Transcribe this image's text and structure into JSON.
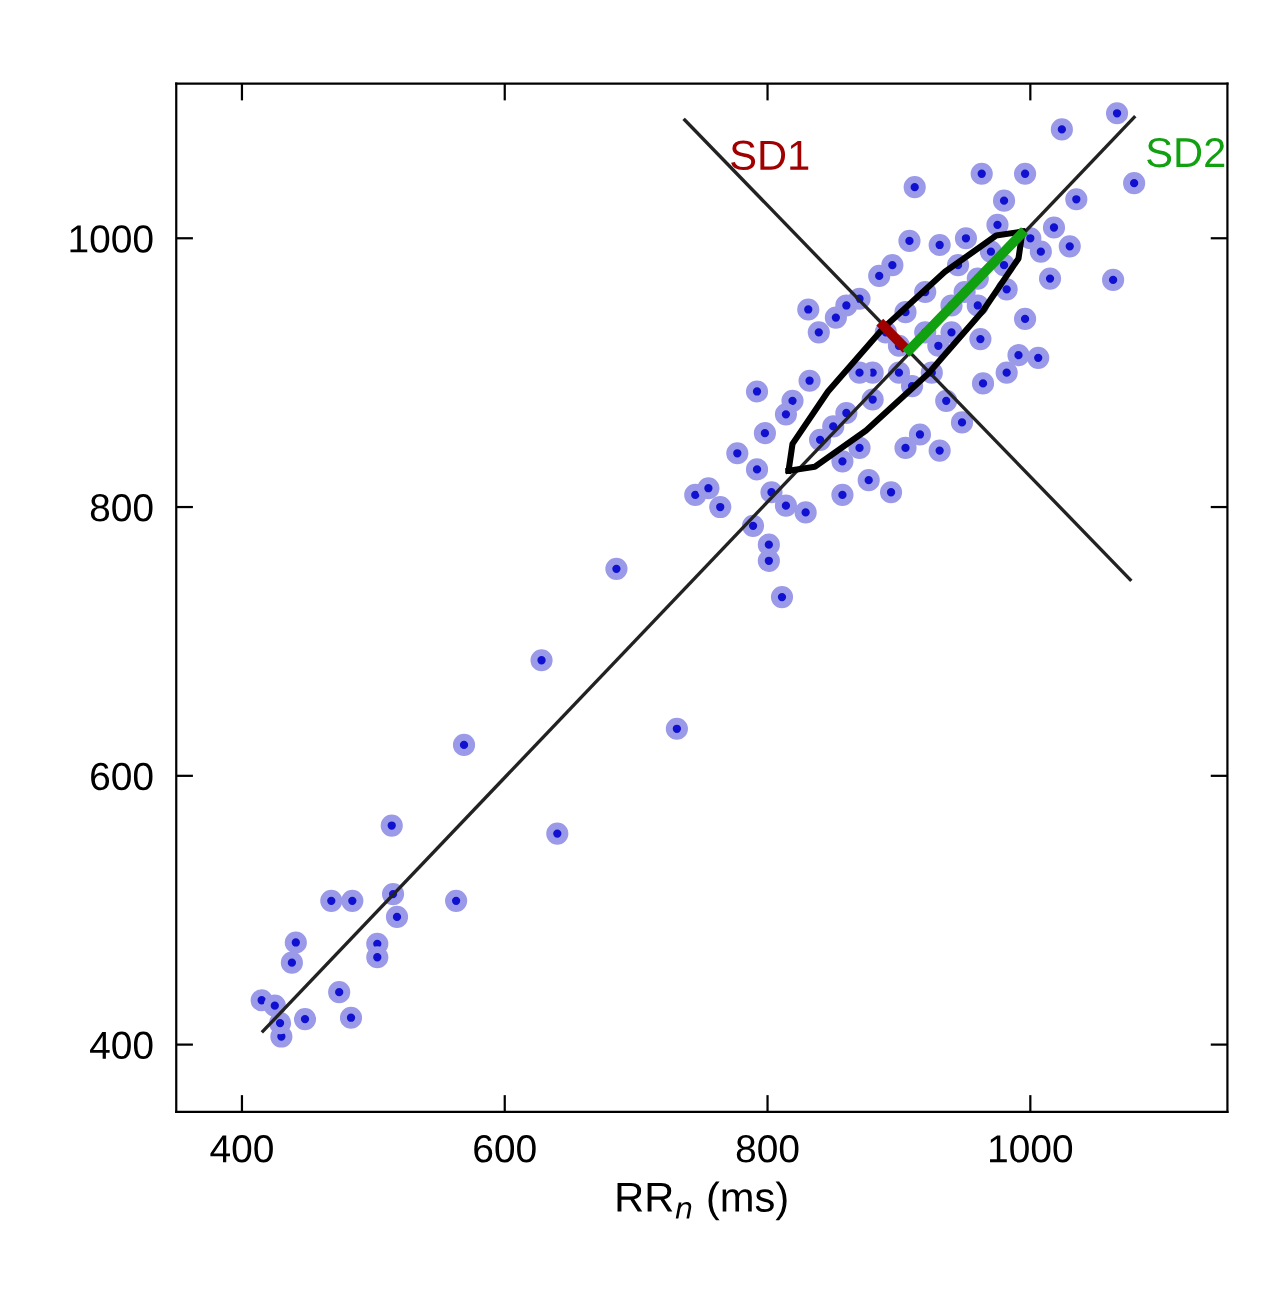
{
  "chart_data": {
    "type": "scatter",
    "xlabel": "RR$_{n}$ (ms)",
    "xlim": [
      350,
      1150
    ],
    "ylim": [
      350,
      1115
    ],
    "xticks": [
      400,
      600,
      800,
      1000
    ],
    "yticks": [
      400,
      600,
      800,
      1000
    ],
    "grid": false,
    "legend": false,
    "annotations": [
      "SD1",
      "SD2"
    ],
    "series": [
      {
        "marker": "circle",
        "color": "#1010d0",
        "x": [
          628,
          731,
          569,
          640,
          514,
          515,
          518,
          468,
          484,
          563,
          441,
          438,
          503,
          503,
          474,
          483,
          448,
          415,
          425,
          430,
          429,
          685,
          811,
          801,
          801,
          789,
          745,
          755,
          764,
          792,
          777,
          792,
          798,
          831,
          852,
          912,
          963,
          996,
          1024,
          1066,
          1079,
          1035,
          1030,
          1063,
          1015,
          1006,
          991,
          948,
          931,
          894,
          877,
          857,
          829,
          814,
          803,
          885,
          908,
          980,
          982,
          964,
          996,
          1008,
          1018,
          870,
          839,
          832,
          819,
          814,
          857,
          870,
          905,
          916,
          936,
          962,
          982,
          951,
          931,
          895,
          860,
          880,
          900,
          920,
          940,
          960,
          880,
          900,
          930,
          950,
          970,
          860,
          850,
          910,
          890,
          940,
          960,
          980,
          870,
          920,
          1000,
          840,
          945,
          975,
          905,
          925
        ],
        "values": [
          686,
          635,
          623,
          557,
          563,
          512,
          495,
          507,
          507,
          507,
          476,
          461,
          475,
          465,
          439,
          420,
          419,
          433,
          429,
          406,
          416,
          754,
          733,
          760,
          772,
          786,
          809,
          814,
          800,
          886,
          840,
          828,
          855,
          947,
          941,
          1038,
          1048,
          1048,
          1081,
          1093,
          1041,
          1029,
          994,
          969,
          970,
          911,
          913,
          863,
          842,
          811,
          820,
          809,
          796,
          801,
          811,
          972,
          998,
          1028,
          900,
          892,
          940,
          990,
          1008,
          955,
          930,
          894,
          879,
          869,
          834,
          844,
          844,
          854,
          879,
          925,
          962,
          1000,
          995,
          980,
          950,
          880,
          900,
          930,
          950,
          970,
          900,
          920,
          920,
          960,
          990,
          870,
          860,
          890,
          930,
          930,
          950,
          980,
          900,
          960,
          1000,
          850,
          980,
          1010,
          945,
          900
        ]
      },
      {
        "type": "line",
        "color": "#222222",
        "x": [
          416,
          1079
        ],
        "values": [
          410,
          1090
        ]
      },
      {
        "type": "line",
        "color": "#222222",
        "x": [
          737,
          1076
        ],
        "values": [
          1088,
          746
        ]
      },
      {
        "type": "line",
        "color": "#000000",
        "x": [
          816,
          819,
          846,
          888,
          935,
          974,
          994
        ],
        "values": [
          827,
          847,
          886,
          933,
          975,
          1002,
          1005
        ]
      },
      {
        "type": "line",
        "color": "#000000",
        "x": [
          816,
          836,
          875,
          922,
          964,
          991,
          994
        ],
        "values": [
          827,
          830,
          857,
          899,
          946,
          985,
          1005
        ]
      },
      {
        "type": "line",
        "color": "#a00000",
        "x": [
          888,
          903
        ],
        "values": [
          935,
          920
        ]
      },
      {
        "type": "line",
        "color": "#10a010",
        "x": [
          908,
          993
        ],
        "values": [
          917,
          1003
        ]
      }
    ]
  }
}
